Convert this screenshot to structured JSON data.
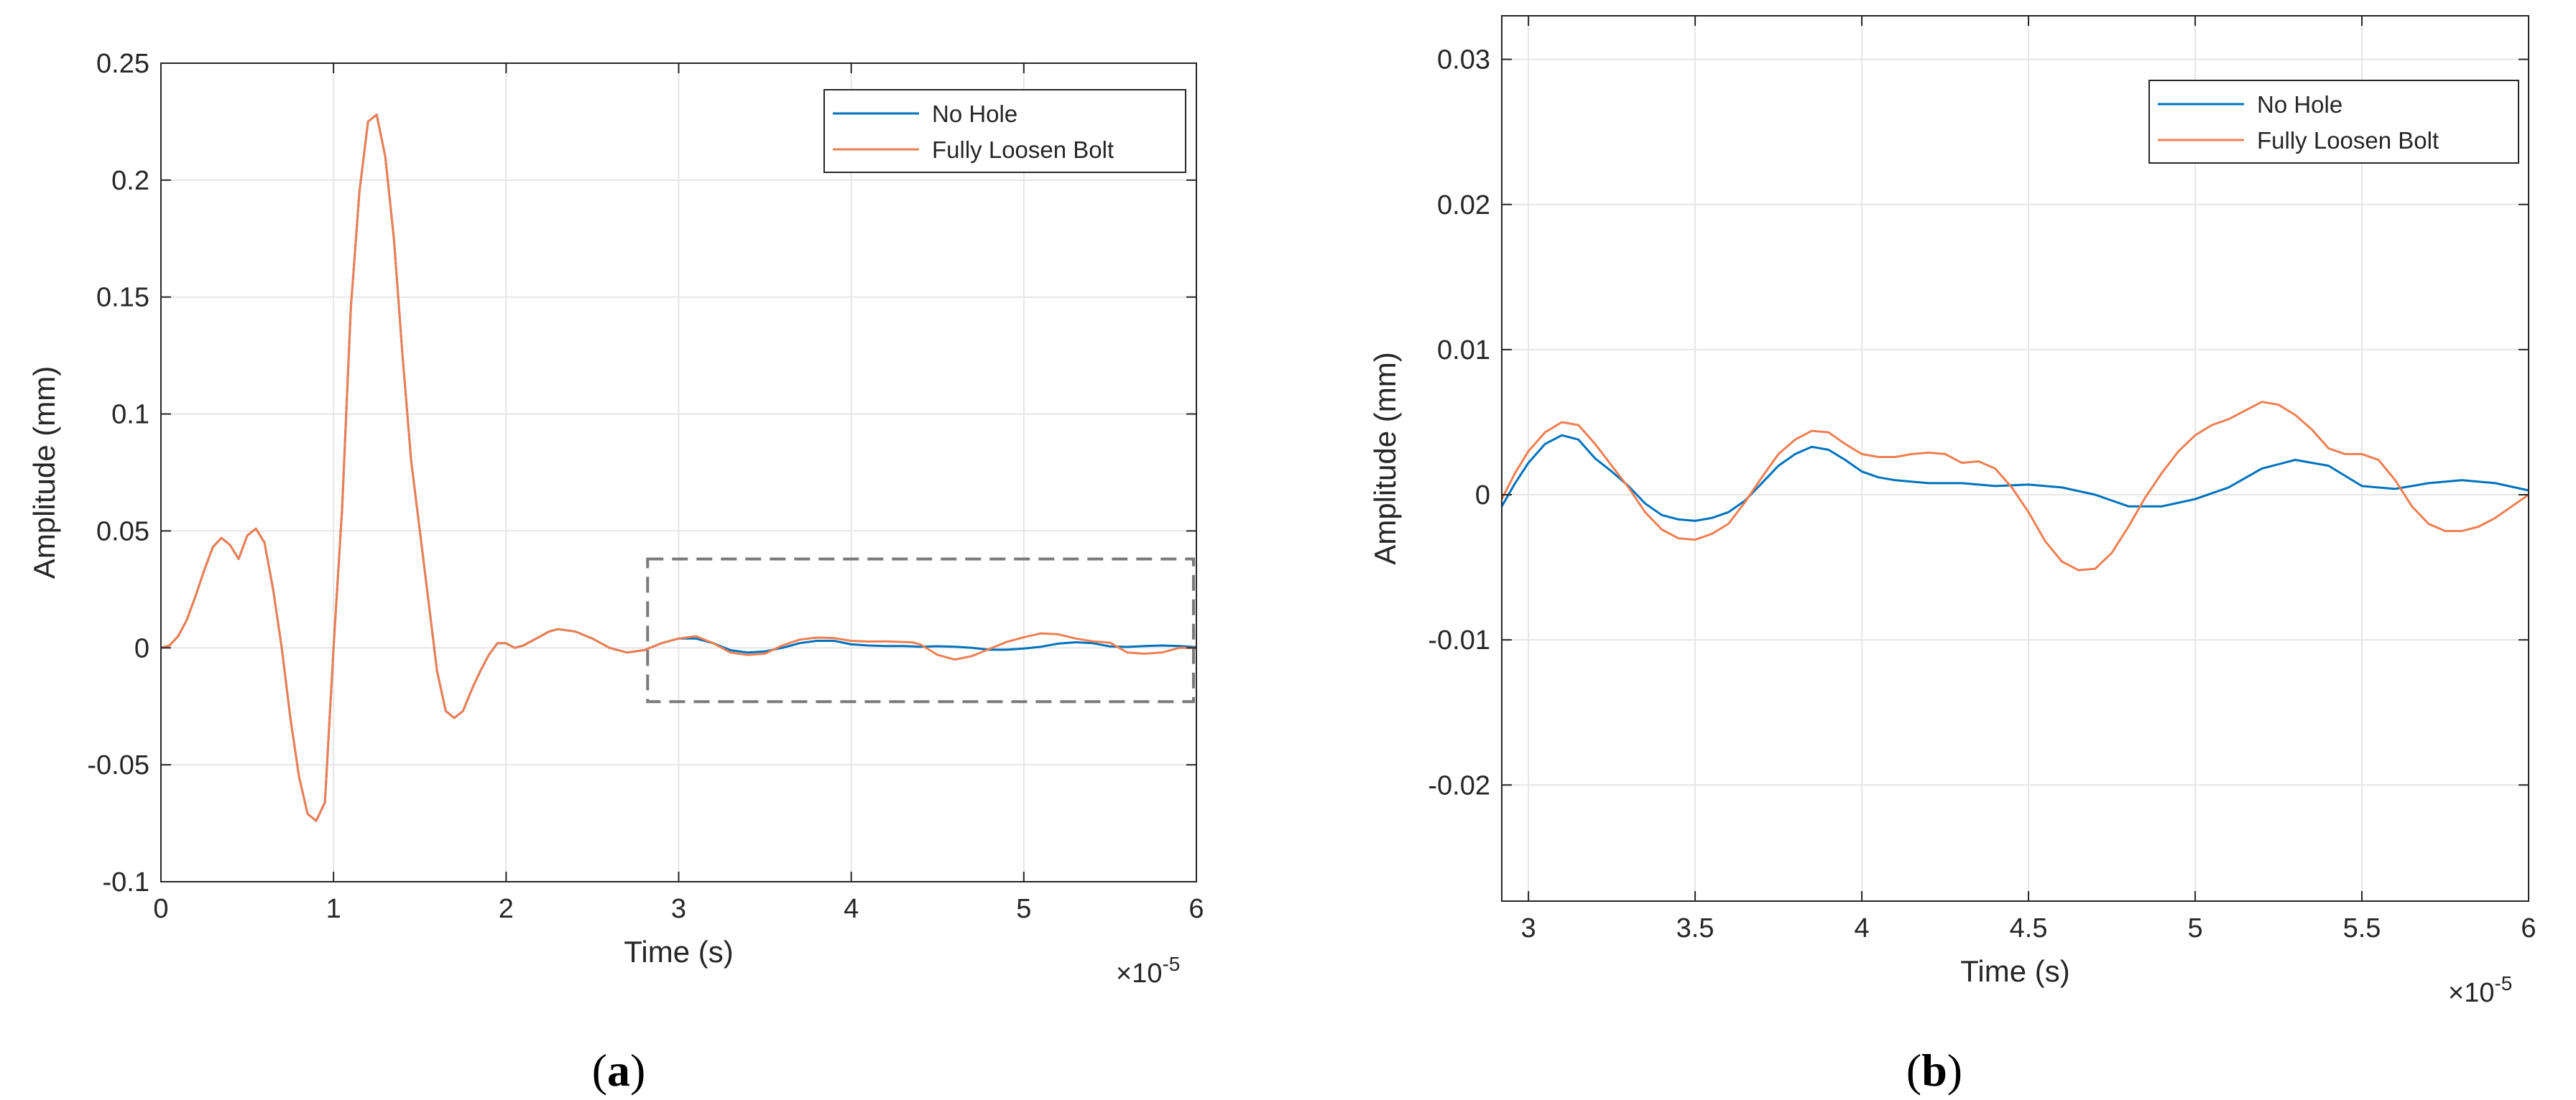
{
  "figure": {
    "caption_a_open": "(",
    "caption_a_letter": "a",
    "caption_a_close": ")",
    "caption_b_open": "(",
    "caption_b_letter": "b",
    "caption_b_close": ")"
  },
  "chart_data": [
    {
      "id": "a",
      "type": "line",
      "xlabel": "Time (s)",
      "ylabel": "Amplitude (mm)",
      "x_exponent_label": "×10",
      "x_exponent_power": "-5",
      "xlim": [
        0,
        6
      ],
      "ylim": [
        -0.1,
        0.25
      ],
      "xticks": [
        0,
        1,
        2,
        3,
        4,
        5,
        6
      ],
      "xtick_labels": [
        "0",
        "1",
        "2",
        "3",
        "4",
        "5",
        "6"
      ],
      "yticks": [
        -0.1,
        -0.05,
        0,
        0.05,
        0.1,
        0.15,
        0.2,
        0.25
      ],
      "ytick_labels": [
        "-0.1",
        "-0.05",
        "0",
        "0.05",
        "0.1",
        "0.15",
        "0.2",
        "0.25"
      ],
      "grid": true,
      "legend_position": "top-right",
      "annotation_box": {
        "x": [
          2.82,
          6.0
        ],
        "y": [
          -0.023,
          0.038
        ],
        "style": "dashed"
      },
      "series": [
        {
          "name": "No Hole",
          "color": "#0072BD",
          "x": [
            0,
            0.05,
            0.1,
            0.15,
            0.2,
            0.25,
            0.3,
            0.35,
            0.4,
            0.45,
            0.5,
            0.55,
            0.6,
            0.65,
            0.7,
            0.75,
            0.8,
            0.85,
            0.9,
            0.95,
            1.0,
            1.05,
            1.1,
            1.15,
            1.2,
            1.25,
            1.3,
            1.35,
            1.4,
            1.45,
            1.5,
            1.55,
            1.6,
            1.65,
            1.7,
            1.75,
            1.8,
            1.85,
            1.9,
            1.95,
            2.0,
            2.05,
            2.1,
            2.15,
            2.2,
            2.25,
            2.3,
            2.4,
            2.5,
            2.6,
            2.7,
            2.8,
            2.9,
            3.0,
            3.1,
            3.2,
            3.3,
            3.4,
            3.5,
            3.6,
            3.7,
            3.8,
            3.9,
            4.0,
            4.1,
            4.2,
            4.3,
            4.4,
            4.5,
            4.6,
            4.7,
            4.8,
            4.9,
            5.0,
            5.1,
            5.2,
            5.3,
            5.4,
            5.5,
            5.6,
            5.7,
            5.8,
            5.9,
            6.0
          ],
          "values": [
            0,
            0.001,
            0.005,
            0.012,
            0.022,
            0.033,
            0.043,
            0.047,
            0.044,
            0.038,
            0.048,
            0.051,
            0.045,
            0.025,
            0.0,
            -0.03,
            -0.055,
            -0.071,
            -0.074,
            -0.066,
            0.0,
            0.06,
            0.145,
            0.195,
            0.225,
            0.228,
            0.21,
            0.175,
            0.125,
            0.08,
            0.05,
            0.02,
            -0.01,
            -0.027,
            -0.03,
            -0.027,
            -0.018,
            -0.01,
            -0.003,
            0.002,
            0.002,
            0.0,
            0.001,
            0.003,
            0.005,
            0.007,
            0.008,
            0.007,
            0.004,
            0.0,
            -0.002,
            -0.001,
            0.002,
            0.004,
            0.004,
            0.002,
            -0.001,
            -0.002,
            -0.0015,
            0.0,
            0.002,
            0.003,
            0.003,
            0.0015,
            0.001,
            0.0008,
            0.0008,
            0.0005,
            0.0007,
            0.0005,
            0.0,
            -0.0008,
            -0.0008,
            -0.0003,
            0.0005,
            0.0018,
            0.0024,
            0.002,
            0.0006,
            0.0004,
            0.0008,
            0.001,
            0.0008,
            0.0003
          ]
        },
        {
          "name": "Fully Loosen Bolt",
          "color": "#EE7F52",
          "x": [
            0,
            0.05,
            0.1,
            0.15,
            0.2,
            0.25,
            0.3,
            0.35,
            0.4,
            0.45,
            0.5,
            0.55,
            0.6,
            0.65,
            0.7,
            0.75,
            0.8,
            0.85,
            0.9,
            0.95,
            1.0,
            1.05,
            1.1,
            1.15,
            1.2,
            1.25,
            1.3,
            1.35,
            1.4,
            1.45,
            1.5,
            1.55,
            1.6,
            1.65,
            1.7,
            1.75,
            1.8,
            1.85,
            1.9,
            1.95,
            2.0,
            2.05,
            2.1,
            2.15,
            2.2,
            2.25,
            2.3,
            2.4,
            2.5,
            2.6,
            2.7,
            2.8,
            2.9,
            3.0,
            3.1,
            3.2,
            3.3,
            3.4,
            3.5,
            3.6,
            3.7,
            3.8,
            3.9,
            4.0,
            4.1,
            4.2,
            4.3,
            4.35,
            4.4,
            4.5,
            4.6,
            4.7,
            4.8,
            4.9,
            5.0,
            5.1,
            5.2,
            5.3,
            5.4,
            5.5,
            5.6,
            5.7,
            5.8,
            5.9,
            6.0
          ],
          "values": [
            0,
            0.001,
            0.005,
            0.012,
            0.022,
            0.033,
            0.043,
            0.047,
            0.044,
            0.038,
            0.048,
            0.051,
            0.045,
            0.025,
            0.0,
            -0.03,
            -0.055,
            -0.071,
            -0.074,
            -0.066,
            0.0,
            0.06,
            0.145,
            0.195,
            0.225,
            0.228,
            0.21,
            0.175,
            0.125,
            0.08,
            0.05,
            0.02,
            -0.01,
            -0.027,
            -0.03,
            -0.027,
            -0.018,
            -0.01,
            -0.003,
            0.002,
            0.002,
            0.0,
            0.001,
            0.003,
            0.005,
            0.007,
            0.008,
            0.007,
            0.004,
            0.0,
            -0.002,
            -0.001,
            0.002,
            0.004,
            0.005,
            0.002,
            -0.002,
            -0.003,
            -0.0025,
            0.001,
            0.0035,
            0.0044,
            0.0042,
            0.003,
            0.0027,
            0.0028,
            0.0025,
            0.0024,
            0.0015,
            -0.003,
            -0.005,
            -0.0035,
            -0.0005,
            0.0025,
            0.0045,
            0.0062,
            0.0058,
            0.004,
            0.0028,
            0.0022,
            -0.002,
            -0.0025,
            -0.002,
            0.0,
            0.0
          ]
        }
      ]
    },
    {
      "id": "b",
      "type": "line",
      "xlabel": "Time (s)",
      "ylabel": "Amplitude (mm)",
      "x_exponent_label": "×10",
      "x_exponent_power": "-5",
      "xlim": [
        2.92,
        6.0
      ],
      "ylim": [
        -0.028,
        0.033
      ],
      "xticks": [
        3,
        3.5,
        4,
        4.5,
        5,
        5.5,
        6
      ],
      "xtick_labels": [
        "3",
        "3.5",
        "4",
        "4.5",
        "5",
        "5.5",
        "6"
      ],
      "yticks": [
        -0.02,
        -0.01,
        0,
        0.01,
        0.02,
        0.03
      ],
      "ytick_labels": [
        "-0.02",
        "-0.01",
        "0",
        "0.01",
        "0.02",
        "0.03"
      ],
      "grid": true,
      "legend_position": "top-right",
      "series": [
        {
          "name": "No Hole",
          "color": "#0072BD",
          "x": [
            2.92,
            2.96,
            3.0,
            3.05,
            3.1,
            3.15,
            3.2,
            3.25,
            3.3,
            3.35,
            3.4,
            3.45,
            3.5,
            3.55,
            3.6,
            3.65,
            3.7,
            3.75,
            3.8,
            3.85,
            3.9,
            3.95,
            4.0,
            4.05,
            4.1,
            4.2,
            4.3,
            4.4,
            4.5,
            4.6,
            4.7,
            4.8,
            4.9,
            5.0,
            5.1,
            5.2,
            5.3,
            5.4,
            5.5,
            5.6,
            5.7,
            5.8,
            5.9,
            6.0
          ],
          "values": [
            -0.0008,
            0.0008,
            0.0022,
            0.0035,
            0.0041,
            0.0038,
            0.0025,
            0.0016,
            0.0006,
            -0.0006,
            -0.0014,
            -0.0017,
            -0.0018,
            -0.0016,
            -0.0012,
            -0.0004,
            0.0008,
            0.002,
            0.0028,
            0.0033,
            0.0031,
            0.0024,
            0.0016,
            0.0012,
            0.001,
            0.0008,
            0.0008,
            0.0006,
            0.0007,
            0.0005,
            0.0,
            -0.0008,
            -0.0008,
            -0.0003,
            0.0005,
            0.0018,
            0.0024,
            0.002,
            0.0006,
            0.0004,
            0.0008,
            0.001,
            0.0008,
            0.0003
          ]
        },
        {
          "name": "Fully Loosen Bolt",
          "color": "#EE7F52",
          "x": [
            2.92,
            2.96,
            3.0,
            3.05,
            3.1,
            3.15,
            3.2,
            3.25,
            3.3,
            3.35,
            3.4,
            3.45,
            3.5,
            3.55,
            3.6,
            3.65,
            3.7,
            3.75,
            3.8,
            3.85,
            3.9,
            3.95,
            4.0,
            4.05,
            4.1,
            4.15,
            4.2,
            4.25,
            4.3,
            4.35,
            4.4,
            4.45,
            4.5,
            4.55,
            4.6,
            4.65,
            4.7,
            4.75,
            4.8,
            4.85,
            4.9,
            4.95,
            5.0,
            5.05,
            5.1,
            5.15,
            5.2,
            5.25,
            5.3,
            5.35,
            5.4,
            5.45,
            5.5,
            5.55,
            5.6,
            5.65,
            5.7,
            5.75,
            5.8,
            5.85,
            5.9,
            5.95,
            6.0
          ],
          "values": [
            -0.0003,
            0.0015,
            0.003,
            0.0043,
            0.005,
            0.0048,
            0.0035,
            0.002,
            0.0005,
            -0.0012,
            -0.0024,
            -0.003,
            -0.0031,
            -0.0027,
            -0.002,
            -0.0005,
            0.0012,
            0.0028,
            0.0038,
            0.0044,
            0.0043,
            0.0035,
            0.0028,
            0.0026,
            0.0026,
            0.0028,
            0.0029,
            0.0028,
            0.0022,
            0.0023,
            0.0018,
            0.0005,
            -0.0012,
            -0.0032,
            -0.0046,
            -0.0052,
            -0.0051,
            -0.004,
            -0.0022,
            -0.0002,
            0.0015,
            0.003,
            0.0041,
            0.0048,
            0.0052,
            0.0058,
            0.0064,
            0.0062,
            0.0055,
            0.0045,
            0.0032,
            0.0028,
            0.0028,
            0.0024,
            0.001,
            -0.0008,
            -0.002,
            -0.0025,
            -0.0025,
            -0.0022,
            -0.0016,
            -0.0008,
            0.0
          ]
        }
      ]
    }
  ]
}
